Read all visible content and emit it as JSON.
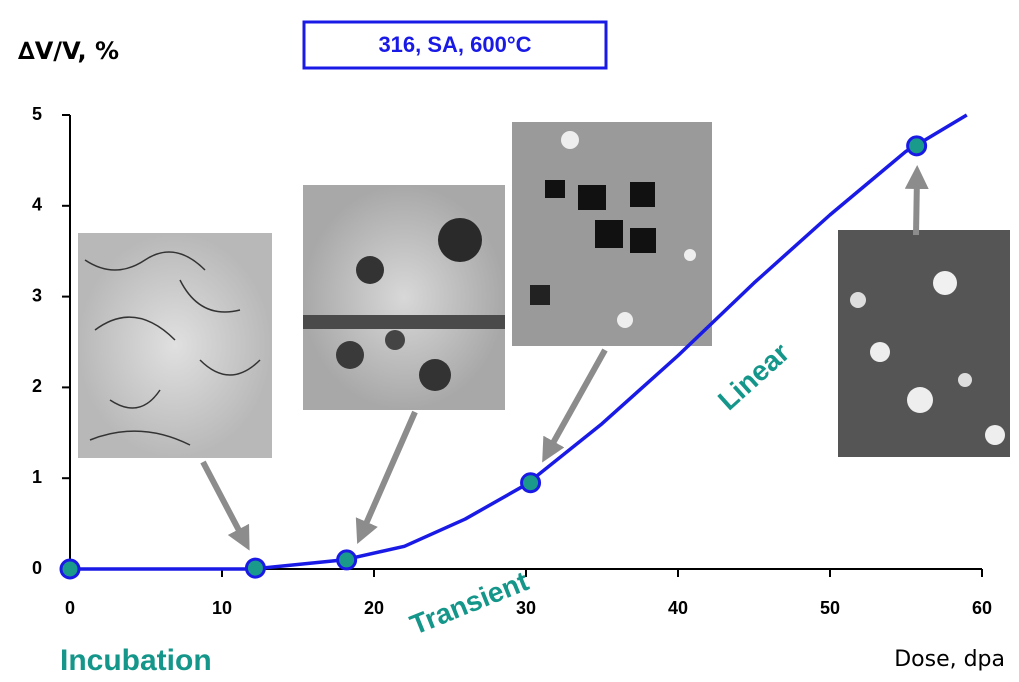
{
  "chart_data": {
    "type": "line",
    "title": "316, SA, 600°C",
    "x_label": "Dose, dpa",
    "y_label": "∆V/V, %",
    "annotations": [
      "Incubation",
      "Transient",
      "Linear"
    ],
    "xlim": [
      0,
      60
    ],
    "xticks": [
      0,
      10,
      20,
      30,
      40,
      50,
      60
    ],
    "ylim": [
      0,
      5
    ],
    "yticks": [
      0,
      1,
      2,
      3,
      4,
      5
    ],
    "grid": false,
    "series": [
      {
        "style": "line",
        "color": "#1a1ae6",
        "x": [
          0,
          12,
          18,
          22,
          26,
          30,
          35,
          40,
          45,
          50,
          55,
          59
        ],
        "values": [
          0,
          0,
          0.1,
          0.25,
          0.55,
          0.93,
          1.6,
          2.35,
          3.15,
          3.9,
          4.6,
          5.0
        ]
      },
      {
        "style": "markers",
        "color": "#1a9a8a",
        "x": [
          0,
          12.2,
          18.2,
          30.3,
          55.7
        ],
        "values": [
          0,
          0.01,
          0.1,
          0.95,
          4.66
        ]
      }
    ]
  }
}
